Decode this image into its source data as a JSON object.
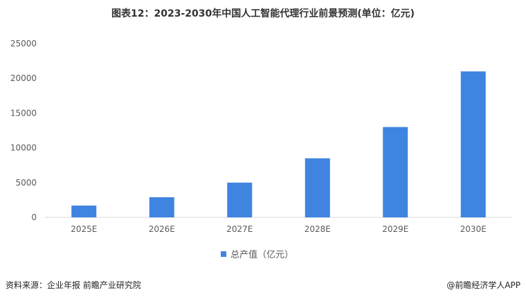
{
  "title": "图表12：2023-2030年中国人工智能代理行业前景预测(单位：亿元)",
  "chart_data": {
    "type": "bar",
    "categories": [
      "2025E",
      "2026E",
      "2027E",
      "2028E",
      "2029E",
      "2030E"
    ],
    "series": [
      {
        "name": "总产值（亿元）",
        "values": [
          1700,
          2900,
          5000,
          8500,
          13000,
          21000
        ]
      }
    ],
    "ylim": [
      0,
      25000
    ],
    "yticks": [
      0,
      5000,
      10000,
      15000,
      20000,
      25000
    ],
    "grid": false,
    "legend": "bottom",
    "color": "#3f84e0"
  },
  "legend_label": "总产值（亿元）",
  "footer": {
    "source": "资料来源：企业年报 前瞻产业研究院",
    "credit": "@前瞻经济学人APP"
  }
}
